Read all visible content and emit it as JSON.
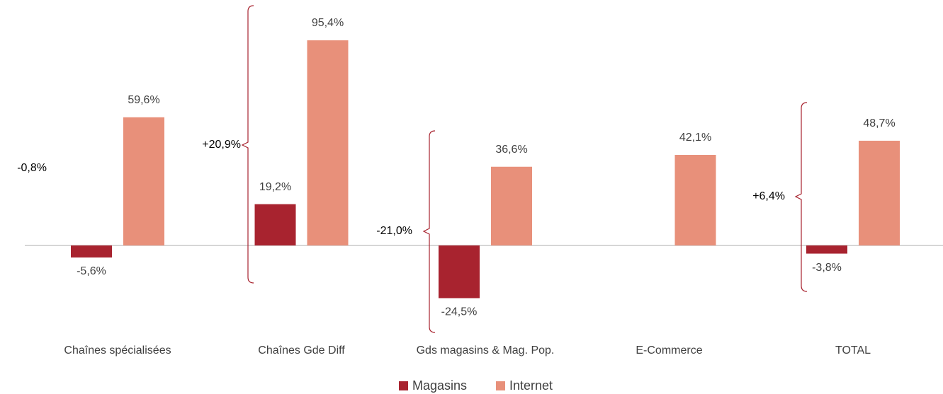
{
  "chart_data": {
    "type": "bar",
    "categories": [
      "Chaînes spécialisées",
      "Chaînes Gde Diff",
      "Gds magasins & Mag. Pop.",
      "E-Commerce",
      "TOTAL"
    ],
    "series": [
      {
        "name": "Magasins",
        "color": "#a8232f",
        "values": [
          -5.6,
          19.2,
          -24.5,
          null,
          -3.8
        ],
        "value_labels": [
          "-5,6%",
          "19,2%",
          "-24,5%",
          null,
          "-3,8%"
        ]
      },
      {
        "name": "Internet",
        "color": "#e8907a",
        "values": [
          59.6,
          95.4,
          36.6,
          42.1,
          48.7
        ],
        "value_labels": [
          "59,6%",
          "95,4%",
          "36,6%",
          "42,1%",
          "48,7%"
        ]
      }
    ],
    "annotations": [
      "-0,8%",
      "+20,9%",
      "-21,0%",
      "+6,4%"
    ]
  }
}
